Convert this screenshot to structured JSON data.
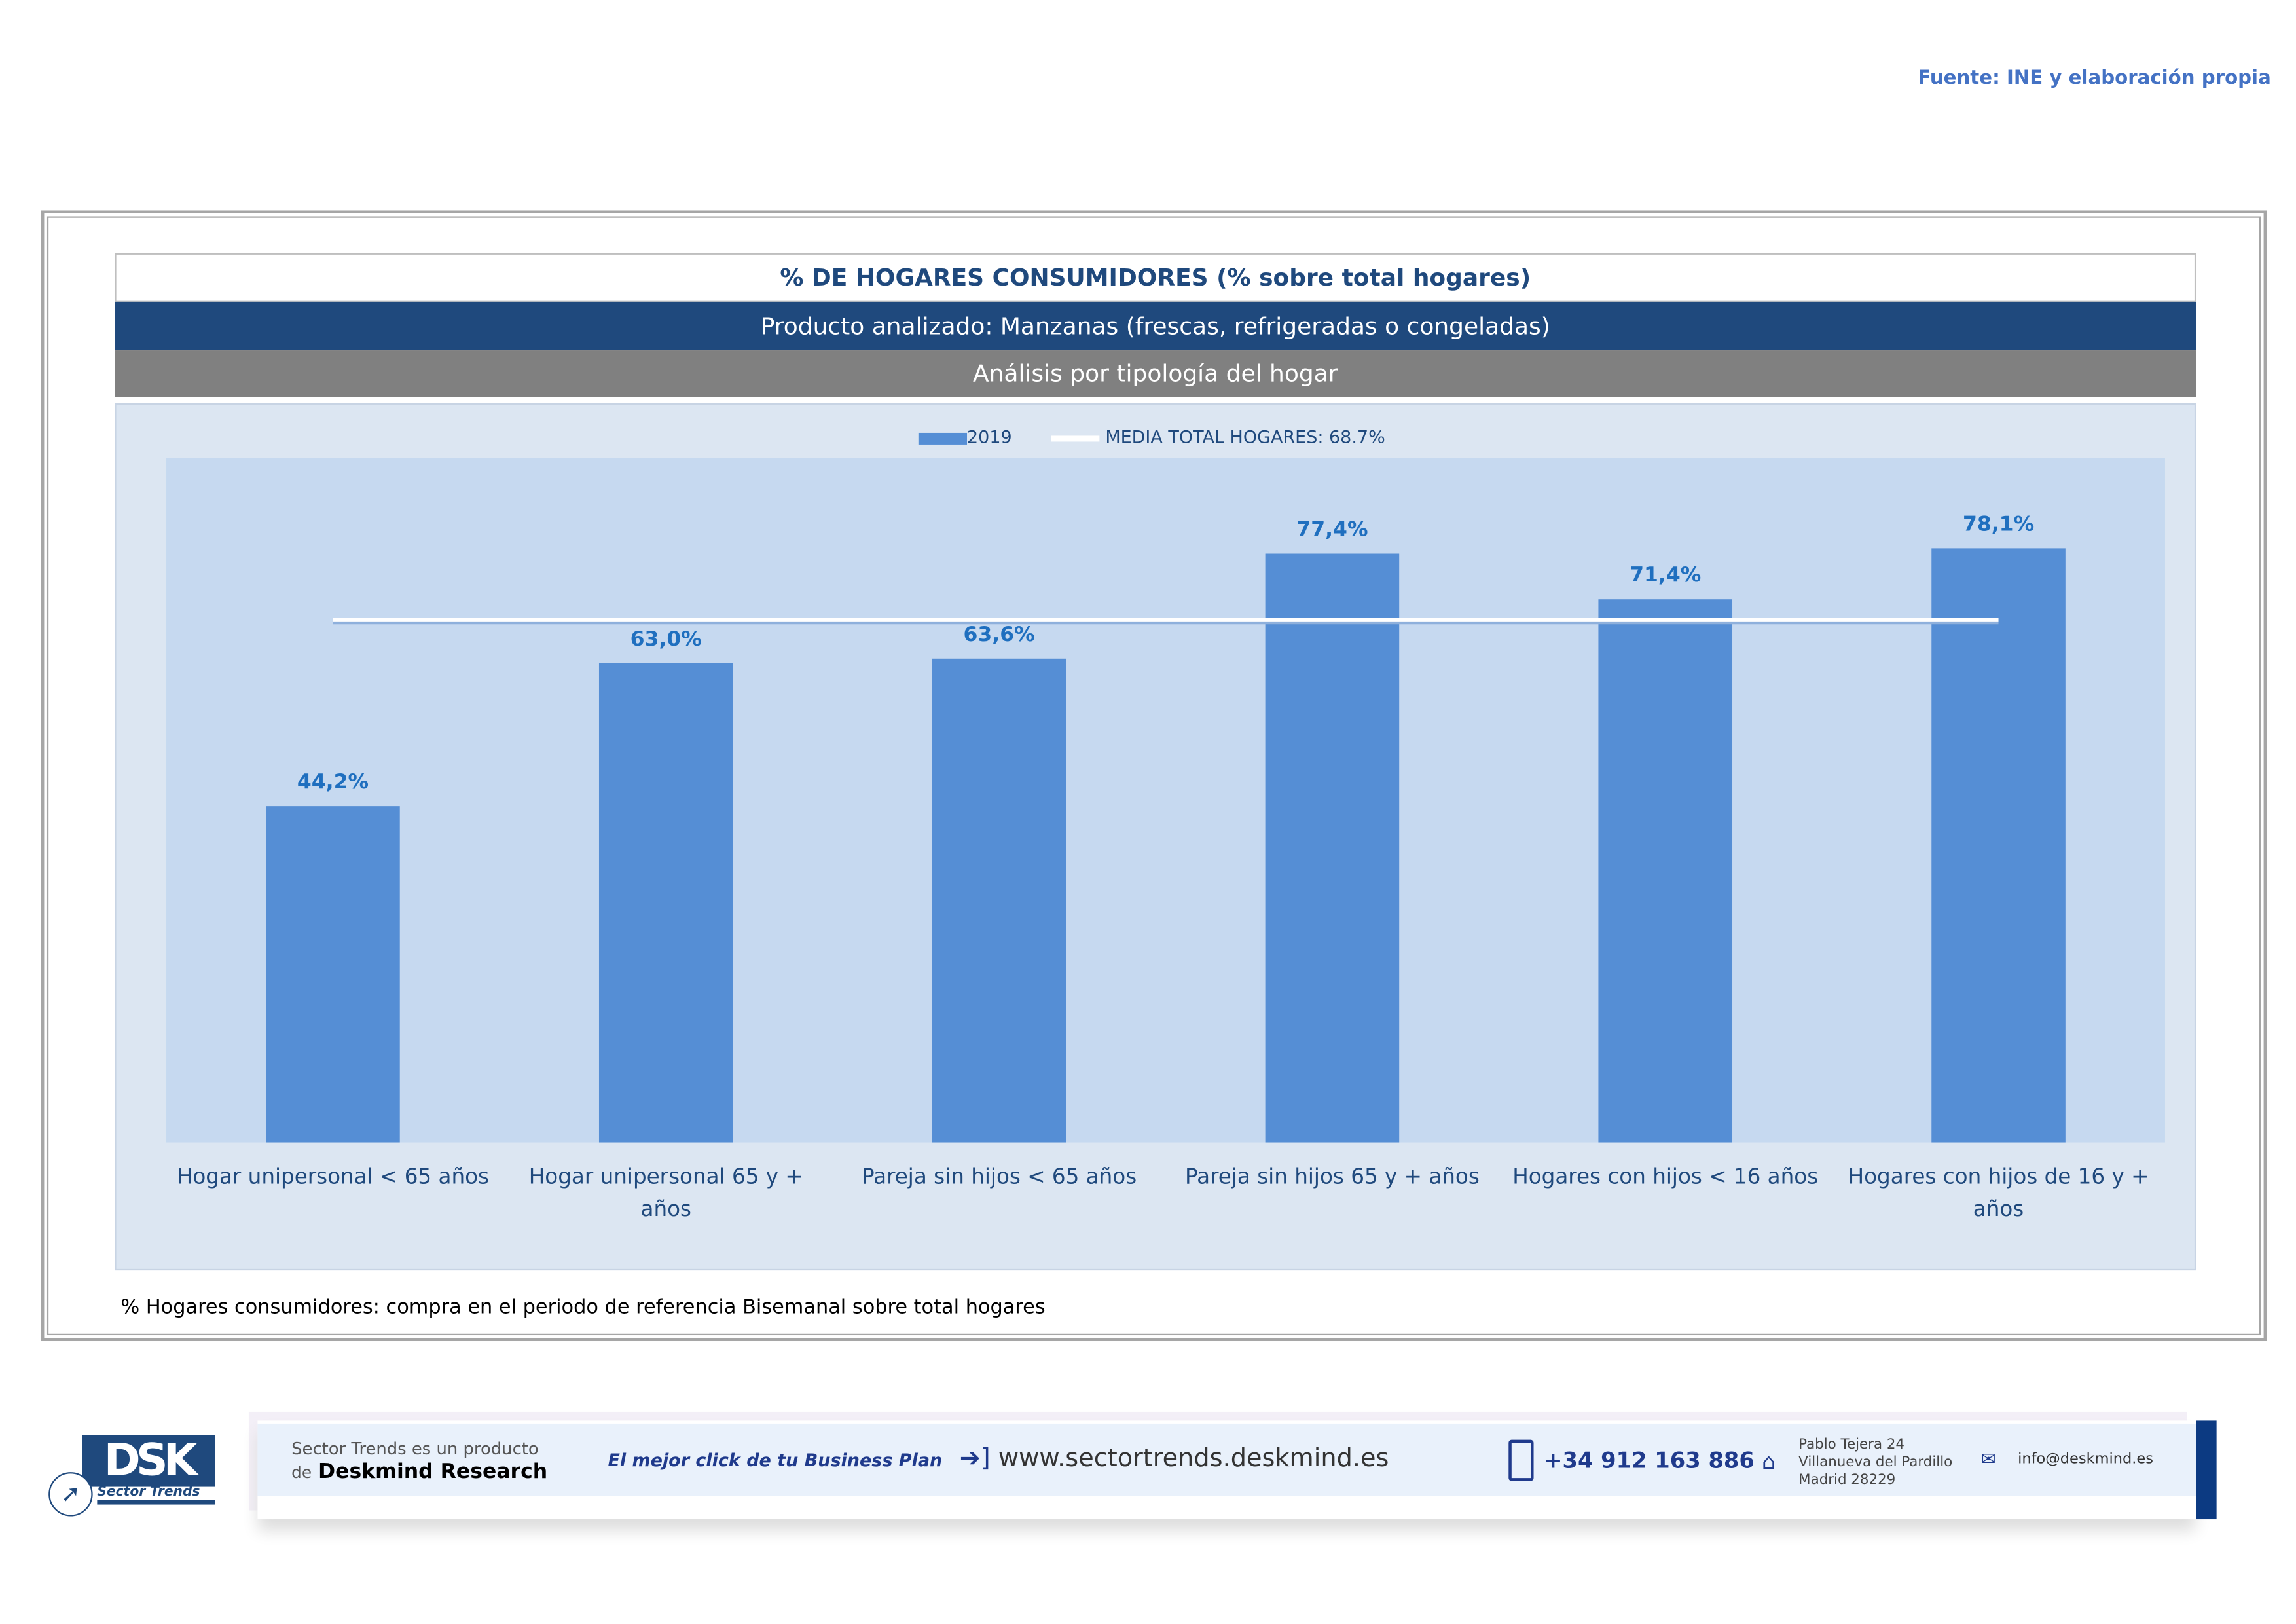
{
  "source": "Fuente: INE y elaboración propia",
  "header": {
    "title": "% DE HOGARES CONSUMIDORES (% sobre total hogares)",
    "product": "Producto analizado: Manzanas (frescas, refrigeradas o congeladas)",
    "analysis": "Análisis por tipología del hogar"
  },
  "note": "% Hogares consumidores: compra en el periodo de referencia Bisemanal sobre total hogares",
  "colors": {
    "bar": "#558ed5",
    "mean": "#ffffff",
    "title": "#1f497d",
    "label": "#1f6fbf"
  },
  "chart_data": {
    "type": "bar",
    "title": "% DE HOGARES CONSUMIDORES (% sobre total hogares)",
    "categories": [
      [
        "Hogar unipersonal < 65 años"
      ],
      [
        "Hogar unipersonal  65 y +",
        "años"
      ],
      [
        "Pareja sin hijos < 65 años"
      ],
      [
        "Pareja sin hijos 65 y + años"
      ],
      [
        "Hogares con hijos < 16 años"
      ],
      [
        "Hogares con hijos de 16 y +",
        "años"
      ]
    ],
    "series": [
      {
        "name": "2019",
        "values": [
          44.2,
          63.0,
          63.6,
          77.4,
          71.4,
          78.1
        ]
      }
    ],
    "data_labels": [
      "44,2%",
      "63,0%",
      "63,6%",
      "77,4%",
      "71,4%",
      "78,1%"
    ],
    "reference_line": {
      "name": "MEDIA TOTAL  HOGARES:  68.7%",
      "value": 68.7
    },
    "ylim": [
      0,
      90
    ],
    "grid": false,
    "legend": "top-center",
    "xlabel": "",
    "ylabel": ""
  },
  "footer": {
    "logo": "DSK",
    "logo_sub": "Sector Trends",
    "product_line1": "Sector Trends es un producto",
    "product_de": "de",
    "product_brand": "Deskmind Research",
    "slogan": "El mejor click de tu Business Plan",
    "website": "www.sectortrends.deskmind.es",
    "phone": "+34 912 163 886",
    "address": [
      "Pablo Tejera 24",
      "Villanueva del Pardillo",
      "Madrid 28229"
    ],
    "email": "info@deskmind.es"
  }
}
